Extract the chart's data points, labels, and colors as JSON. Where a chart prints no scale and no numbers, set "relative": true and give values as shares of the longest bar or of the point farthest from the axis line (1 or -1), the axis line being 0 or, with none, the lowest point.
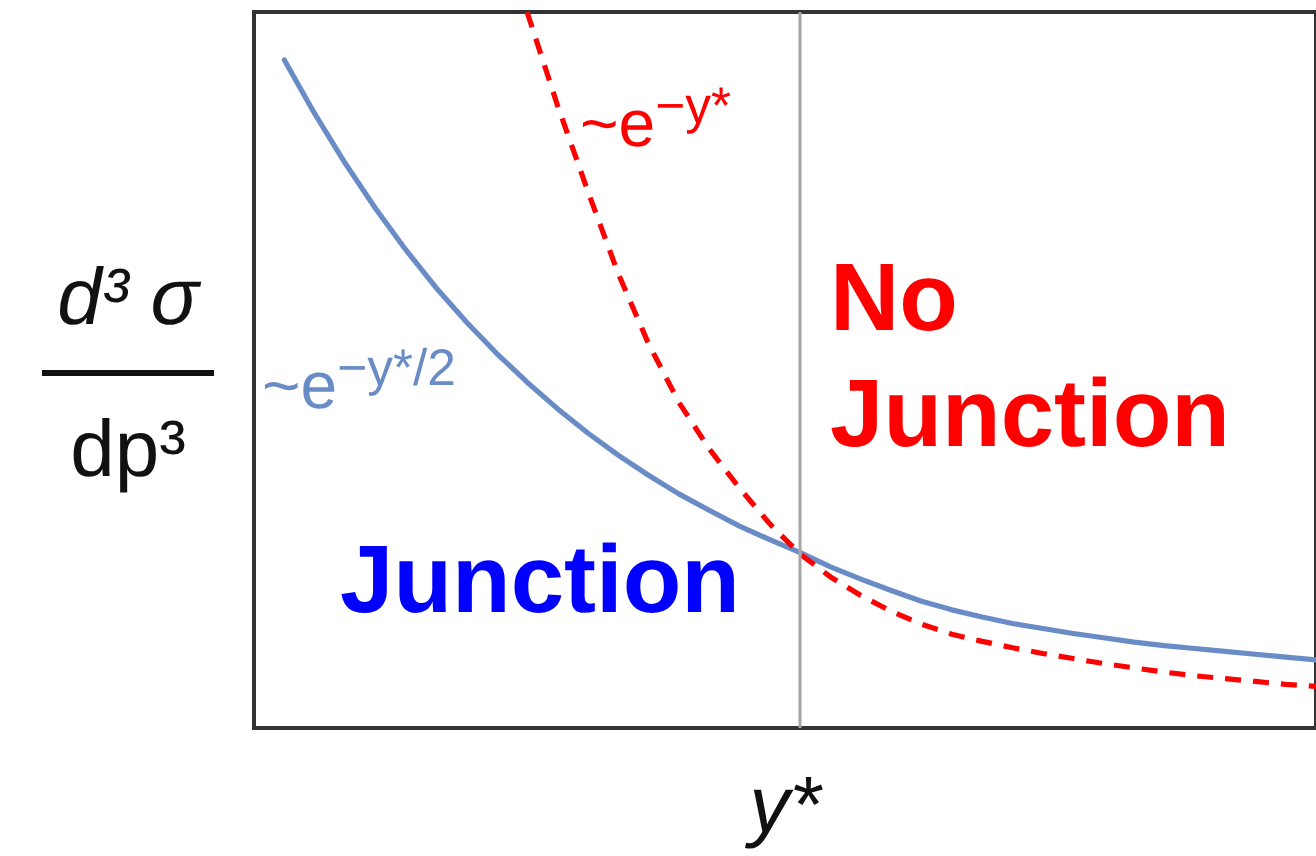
{
  "chart_data": {
    "type": "line",
    "relative": true,
    "xlabel": "y*",
    "ylabel": "d³ σ\ndp³",
    "annotations": [
      "No Junction",
      "Junction"
    ],
    "marker": "none",
    "tick_labels": false,
    "categories": [
      null,
      null,
      null,
      null,
      null,
      null,
      null,
      null,
      null,
      null,
      null,
      null,
      null,
      null,
      null,
      null,
      null,
      null,
      null,
      null,
      null,
      null,
      null,
      null,
      null,
      null,
      null,
      null,
      null,
      null,
      null,
      null,
      null,
      null,
      null,
      null
    ],
    "series": [
      {
        "name": "~e$^{−y*/2}$",
        "color": "#6a8cc6",
        "line_style": "solid",
        "values": [
          null,
          0.933,
          0.858,
          0.789,
          0.726,
          0.668,
          0.615,
          0.567,
          0.523,
          0.483,
          0.446,
          0.412,
          0.381,
          0.353,
          0.327,
          0.304,
          0.282,
          0.263,
          0.245,
          0.225,
          0.208,
          0.192,
          0.177,
          0.165,
          0.155,
          0.146,
          0.139,
          0.132,
          0.126,
          0.12,
          0.115,
          0.111,
          0.107,
          0.103,
          0.099,
          0.095
        ]
      },
      {
        "name": "~e$^{−y*}$",
        "color": "#ff0000",
        "line_style": "dashed",
        "values": [
          null,
          null,
          null,
          null,
          null,
          null,
          null,
          null,
          null,
          1,
          0.87,
          0.75,
          0.635,
          0.537,
          0.455,
          0.39,
          0.335,
          0.285,
          0.243,
          0.211,
          0.185,
          0.163,
          0.145,
          0.131,
          0.121,
          0.112,
          0.104,
          0.097,
          0.09,
          0.084,
          0.078,
          0.073,
          0.069,
          0.065,
          0.061,
          0.058
        ]
      }
    ]
  }
}
